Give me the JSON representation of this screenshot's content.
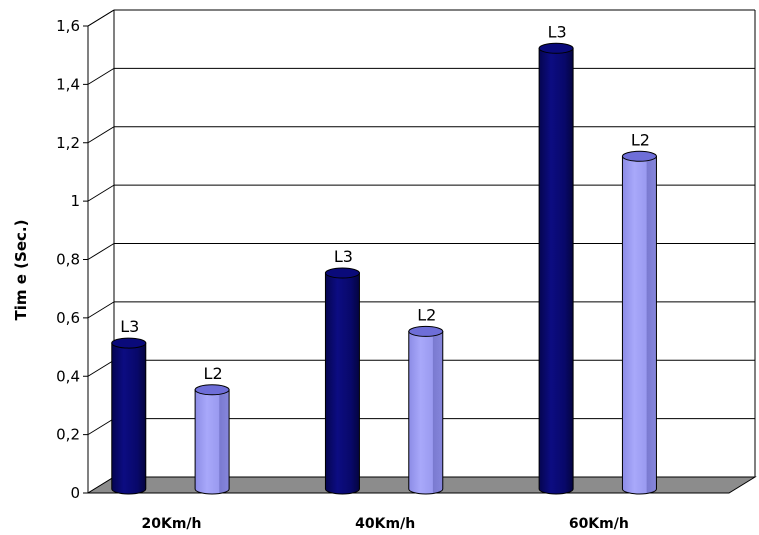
{
  "chart_data": {
    "type": "bar",
    "title": "",
    "xlabel": "",
    "ylabel": "Tim e (Sec.)",
    "categories": [
      "20Km/h",
      "40Km/h",
      "60Km/h"
    ],
    "series": [
      {
        "name": "L3",
        "values": [
          0.5,
          0.74,
          1.51
        ],
        "color": "#0a0a78"
      },
      {
        "name": "L2",
        "values": [
          0.34,
          0.54,
          1.14
        ],
        "color": "#9a9af0"
      }
    ],
    "data_labels": [
      "L3",
      "L2"
    ],
    "ylim": [
      0,
      1.6
    ],
    "yticks": [
      "0",
      "0,2",
      "0,4",
      "0,6",
      "0,8",
      "1",
      "1,2",
      "1,4",
      "1,6"
    ],
    "ytick_values": [
      0,
      0.2,
      0.4,
      0.6,
      0.8,
      1,
      1.2,
      1.4,
      1.6
    ],
    "grid": true,
    "legend": "none",
    "floor_color": "#8c8c8c"
  }
}
